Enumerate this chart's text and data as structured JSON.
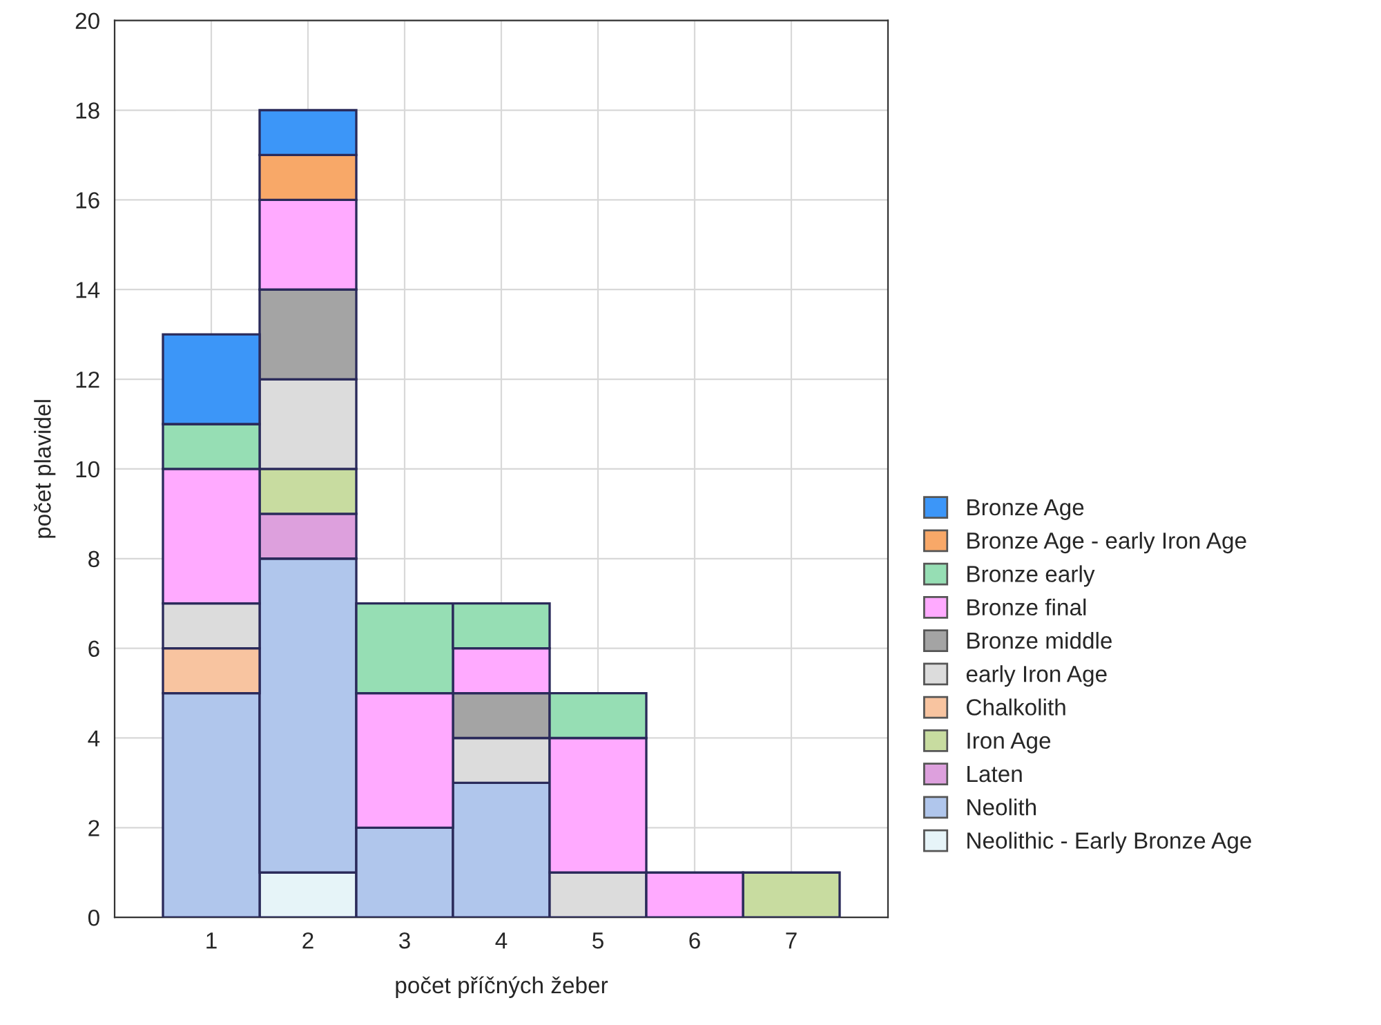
{
  "chart_data": {
    "type": "bar",
    "stacked": true,
    "xlabel": "počet příčných žeber",
    "ylabel": "počet plavidel",
    "categories": [
      "1",
      "2",
      "3",
      "4",
      "5",
      "6",
      "7"
    ],
    "series": [
      {
        "name": "Neolithic - Early Bronze Age",
        "color": "#e6f4f8",
        "values": [
          null,
          1,
          null,
          null,
          null,
          null,
          null
        ]
      },
      {
        "name": "Neolith",
        "color": "#b0c6ec",
        "values": [
          5,
          7,
          2,
          3,
          null,
          null,
          null
        ]
      },
      {
        "name": "Laten",
        "color": "#dda0dd",
        "values": [
          null,
          1,
          null,
          null,
          null,
          null,
          null
        ]
      },
      {
        "name": "Iron Age",
        "color": "#c8dca0",
        "values": [
          null,
          1,
          null,
          null,
          null,
          null,
          1
        ]
      },
      {
        "name": "Chalkolith",
        "color": "#f8c4a0",
        "values": [
          1,
          null,
          null,
          null,
          null,
          null,
          null
        ]
      },
      {
        "name": "early Iron Age",
        "color": "#dcdcdc",
        "values": [
          1,
          2,
          null,
          1,
          1,
          null,
          null
        ]
      },
      {
        "name": "Bronze middle",
        "color": "#a4a4a4",
        "values": [
          null,
          2,
          null,
          1,
          null,
          null,
          null
        ]
      },
      {
        "name": "Bronze final",
        "color": "#ffaaff",
        "values": [
          3,
          2,
          3,
          1,
          3,
          1,
          null
        ]
      },
      {
        "name": "Bronze early",
        "color": "#96deb4",
        "values": [
          1,
          null,
          2,
          1,
          1,
          null,
          null
        ]
      },
      {
        "name": "Bronze Age - early Iron Age",
        "color": "#f8a868",
        "values": [
          null,
          1,
          null,
          null,
          null,
          null,
          null
        ]
      },
      {
        "name": "Bronze Age",
        "color": "#3c96f8",
        "values": [
          2,
          1,
          null,
          null,
          null,
          null,
          null
        ]
      }
    ],
    "ylim": [
      0,
      20
    ],
    "yticks": [
      0,
      2,
      4,
      6,
      8,
      10,
      12,
      14,
      16,
      18,
      20
    ],
    "grid": true,
    "legend": "right"
  }
}
